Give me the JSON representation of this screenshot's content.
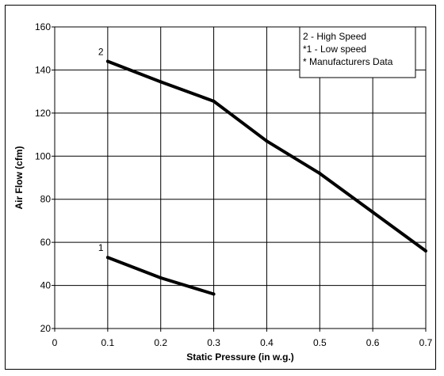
{
  "chart_data": {
    "type": "line",
    "xlabel": "Static Pressure (in w.g.)",
    "ylabel": "Air Flow (cfm)",
    "xlim": [
      0,
      0.7
    ],
    "ylim": [
      20,
      160
    ],
    "xticks": [
      0,
      0.1,
      0.2,
      0.3,
      0.4,
      0.5,
      0.6,
      0.7
    ],
    "yticks": [
      20,
      40,
      60,
      80,
      100,
      120,
      140,
      160
    ],
    "xtick_labels": [
      "0",
      "0.1",
      "0.2",
      "0.3",
      "0.4",
      "0.5",
      "0.6",
      "0.7"
    ],
    "ytick_labels": [
      "20",
      "40",
      "60",
      "80",
      "100",
      "120",
      "140",
      "160"
    ],
    "grid": true,
    "legend_position": "top-right",
    "legend_lines": [
      "2 - High Speed",
      "*1 - Low speed",
      "* Manufacturers Data"
    ],
    "series": [
      {
        "label": "2",
        "color": "#000000",
        "x": [
          0.1,
          0.2,
          0.3,
          0.4,
          0.5,
          0.6,
          0.7
        ],
        "y": [
          144,
          134.5,
          125.5,
          107,
          92,
          74,
          56
        ]
      },
      {
        "label": "1",
        "color": "#000000",
        "x": [
          0.1,
          0.2,
          0.3
        ],
        "y": [
          53,
          43.5,
          36
        ]
      }
    ]
  }
}
